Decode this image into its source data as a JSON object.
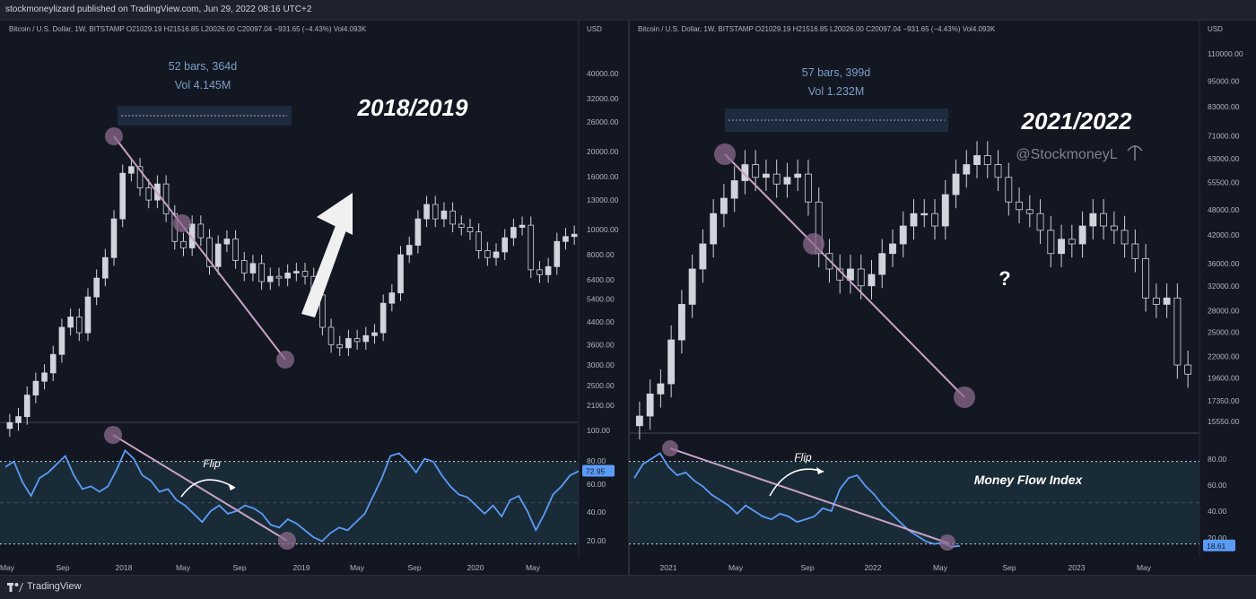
{
  "header": {
    "published_text": "stockmoneylizard published on TradingView.com, Jun 29, 2022 08:16 UTC+2"
  },
  "footer": {
    "brand": "TradingView"
  },
  "colors": {
    "background": "#131722",
    "candle": "#d1d4dc",
    "mfi_line": "#5b9cf6",
    "trendline": "#c7a3c4",
    "circle": "#8c6b8d",
    "band": "#1a2b38",
    "measure_box": "#1c2b3d"
  },
  "chart_data": [
    {
      "type": "line",
      "symbol_info": "Bitcoin / U.S. Dollar, 1W, BITSTAMP  O21029.19  H21516.85  L20026.00  C20097.04  −931.65 (−4.43%)  Vol4.093K",
      "currency": "USD",
      "price_ticks": [
        "40000.00",
        "32000.00",
        "26000.00",
        "20000.00",
        "16000.00",
        "13000.00",
        "10000.00",
        "8000.00",
        "6400.00",
        "5400.00",
        "4400.00",
        "3600.00",
        "3000.00",
        "2500.00",
        "2100.00"
      ],
      "mfi_ticks": [
        "100.00",
        "80.00",
        "60.00",
        "40.00",
        "20.00"
      ],
      "mfi_current": "72.95",
      "x_labels": [
        "May",
        "Sep",
        "2018",
        "May",
        "Sep",
        "2019",
        "May",
        "Sep",
        "2020",
        "May"
      ],
      "measure_line1": "52 bars, 364d",
      "measure_line2": "Vol 4.145M",
      "annotation": "2018/2019",
      "flip_label": "Flip",
      "price_series": [
        1800,
        1900,
        2300,
        2600,
        2800,
        3300,
        4200,
        4600,
        4000,
        5500,
        6500,
        7800,
        11000,
        16500,
        17500,
        14500,
        13000,
        15000,
        11500,
        9000,
        8500,
        10500,
        9300,
        7200,
        8800,
        9200,
        7600,
        6800,
        7400,
        6300,
        6600,
        6500,
        6800,
        6900,
        6600,
        5600,
        4200,
        3600,
        3500,
        3800,
        3700,
        3900,
        4000,
        5200,
        5700,
        8000,
        8700,
        11000,
        12500,
        11000,
        11800,
        10500,
        10200,
        9800,
        8300,
        7800,
        8200,
        9300,
        10200,
        10400,
        7000,
        6700,
        7200,
        9000,
        9400,
        9600
      ],
      "mfi_series": [
        76,
        80,
        65,
        55,
        68,
        72,
        78,
        84,
        70,
        60,
        62,
        58,
        62,
        74,
        88,
        82,
        70,
        66,
        58,
        60,
        52,
        48,
        42,
        36,
        44,
        48,
        42,
        44,
        48,
        46,
        42,
        34,
        32,
        38,
        35,
        30,
        25,
        22,
        28,
        32,
        30,
        36,
        42,
        55,
        68,
        84,
        86,
        80,
        72,
        82,
        80,
        70,
        62,
        56,
        54,
        48,
        42,
        48,
        40,
        52,
        55,
        44,
        30,
        42,
        56,
        62,
        70,
        72.95
      ]
    },
    {
      "type": "line",
      "symbol_info": "Bitcoin / U.S. Dollar, 1W, BITSTAMP  O21029.19  H21516.85  L20026.00  C20097.04  −931.65 (−4.43%)  Vol4.093K",
      "currency": "USD",
      "price_ticks": [
        "110000.00",
        "95000.00",
        "83000.00",
        "71000.00",
        "63000.00",
        "55500.00",
        "48000.00",
        "42000.00",
        "36000.00",
        "32000.00",
        "28000.00",
        "25000.00",
        "22000.00",
        "19600.00",
        "17350.00",
        "15550.00"
      ],
      "mfi_ticks": [
        "80.00",
        "60.00",
        "40.00",
        "20.00"
      ],
      "mfi_current": "18.61",
      "x_labels": [
        "2021",
        "May",
        "Sep",
        "2022",
        "May",
        "Sep",
        "2023",
        "May"
      ],
      "measure_line1": "57 bars, 399d",
      "measure_line2": "Vol 1.232M",
      "annotation": "2021/2022",
      "watermark": "@StockmoneyL",
      "question": "?",
      "panel_label": "Money Flow Index",
      "flip_label": "Flip",
      "price_series": [
        16000,
        18000,
        19000,
        24000,
        29000,
        35000,
        40000,
        47000,
        51000,
        56000,
        61000,
        57000,
        58000,
        55000,
        57000,
        58000,
        50000,
        38000,
        35000,
        33000,
        35000,
        32000,
        34000,
        38000,
        40000,
        44000,
        47000,
        47000,
        44000,
        52000,
        58000,
        61000,
        64000,
        61000,
        57000,
        50000,
        48000,
        47000,
        43000,
        38000,
        41000,
        40000,
        44000,
        47000,
        44000,
        43000,
        40000,
        37000,
        30000,
        29000,
        30000,
        21000,
        20000
      ],
      "mfi_series": [
        68,
        78,
        82,
        86,
        76,
        70,
        72,
        66,
        62,
        56,
        52,
        48,
        42,
        48,
        44,
        40,
        38,
        42,
        40,
        36,
        38,
        40,
        46,
        44,
        60,
        68,
        70,
        62,
        56,
        48,
        42,
        36,
        30,
        26,
        22,
        20,
        21,
        18,
        18.61
      ]
    }
  ]
}
